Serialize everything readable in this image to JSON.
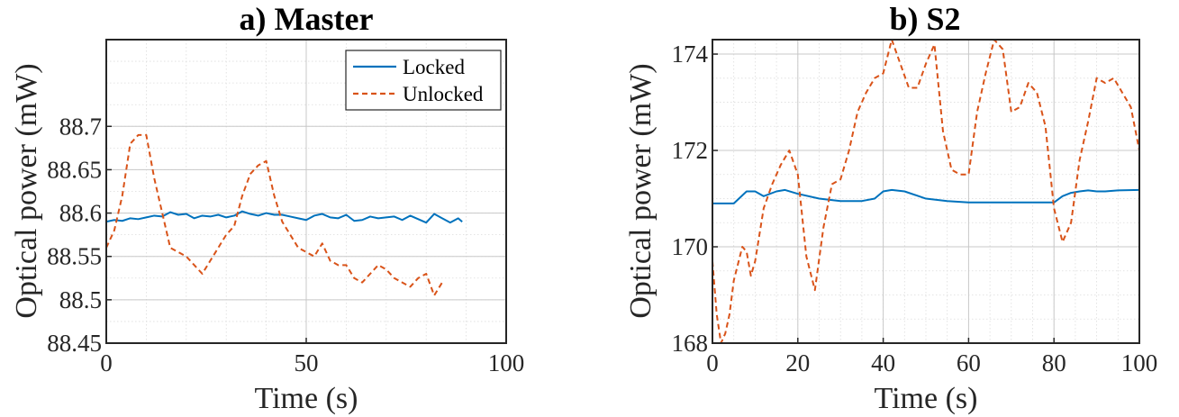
{
  "chart_data": [
    {
      "type": "line",
      "title": "a) Master",
      "xlabel": "Time (s)",
      "ylabel": "Optical power (mW)",
      "xlim": [
        0,
        100
      ],
      "ylim": [
        88.45,
        88.8
      ],
      "xticks": [
        "0",
        "50",
        "100"
      ],
      "yticks": [
        "88.45",
        "88.5",
        "88.55",
        "88.6",
        "88.65",
        "88.7"
      ],
      "grid": true,
      "minor_grid": true,
      "legend": "top-right",
      "series": [
        {
          "name": "Locked",
          "color": "#0072BD",
          "style": "solid",
          "x": [
            0,
            2,
            4,
            6,
            8,
            10,
            12,
            14,
            16,
            18,
            20,
            22,
            24,
            26,
            28,
            30,
            32,
            34,
            36,
            38,
            40,
            42,
            44,
            46,
            48,
            50,
            52,
            54,
            56,
            58,
            60,
            62,
            64,
            66,
            68,
            70,
            72,
            74,
            76,
            78,
            80,
            82,
            84,
            86,
            88,
            89
          ],
          "y": [
            88.59,
            88.592,
            88.591,
            88.594,
            88.593,
            88.595,
            88.597,
            88.596,
            88.601,
            88.598,
            88.599,
            88.594,
            88.597,
            88.596,
            88.598,
            88.595,
            88.597,
            88.602,
            88.599,
            88.597,
            88.6,
            88.598,
            88.598,
            88.596,
            88.594,
            88.592,
            88.597,
            88.599,
            88.595,
            88.594,
            88.598,
            88.591,
            88.592,
            88.596,
            88.594,
            88.595,
            88.596,
            88.592,
            88.597,
            88.593,
            88.589,
            88.599,
            88.594,
            88.589,
            88.594,
            88.59
          ]
        },
        {
          "name": "Unlocked",
          "color": "#D95319",
          "style": "dashed",
          "x": [
            0,
            2,
            4,
            6,
            8,
            10,
            12,
            14,
            16,
            18,
            20,
            22,
            24,
            26,
            28,
            30,
            32,
            34,
            36,
            38,
            40,
            42,
            44,
            46,
            48,
            50,
            52,
            54,
            56,
            58,
            60,
            62,
            64,
            66,
            68,
            70,
            72,
            74,
            76,
            78,
            80,
            82,
            84
          ],
          "y": [
            88.56,
            88.58,
            88.62,
            88.68,
            88.69,
            88.69,
            88.64,
            88.6,
            88.56,
            88.555,
            88.55,
            88.54,
            88.53,
            88.545,
            88.56,
            88.575,
            88.585,
            88.62,
            88.645,
            88.655,
            88.66,
            88.62,
            88.59,
            88.575,
            88.56,
            88.555,
            88.55,
            88.565,
            88.545,
            88.54,
            88.54,
            88.525,
            88.52,
            88.53,
            88.54,
            88.535,
            88.525,
            88.52,
            88.515,
            88.525,
            88.53,
            88.505,
            88.52
          ]
        }
      ]
    },
    {
      "type": "line",
      "title": "b) S2",
      "xlabel": "Time (s)",
      "ylabel": "Optical power (mW)",
      "xlim": [
        0,
        100
      ],
      "ylim": [
        168,
        174.3
      ],
      "xticks": [
        "0",
        "20",
        "40",
        "60",
        "80",
        "100"
      ],
      "yticks": [
        "168",
        "170",
        "172",
        "174"
      ],
      "grid": true,
      "minor_grid": true,
      "legend": "none",
      "series": [
        {
          "color": "#0072BD",
          "style": "solid",
          "x": [
            0,
            5,
            8,
            10,
            12,
            15,
            17,
            20,
            25,
            30,
            35,
            38,
            40,
            42,
            45,
            50,
            55,
            60,
            65,
            70,
            75,
            80,
            82,
            84,
            86,
            88,
            90,
            92,
            95,
            100
          ],
          "y": [
            170.9,
            170.9,
            171.15,
            171.15,
            171.05,
            171.15,
            171.18,
            171.1,
            171.0,
            170.95,
            170.95,
            171.0,
            171.15,
            171.18,
            171.15,
            171.0,
            170.95,
            170.92,
            170.92,
            170.92,
            170.92,
            170.92,
            171.05,
            171.12,
            171.15,
            171.17,
            171.15,
            171.15,
            171.17,
            171.18
          ]
        },
        {
          "color": "#D95319",
          "style": "dashed",
          "x": [
            0,
            1,
            2,
            3,
            4,
            5,
            7,
            8,
            9,
            10,
            12,
            14,
            16,
            18,
            20,
            22,
            24,
            26,
            28,
            30,
            32,
            34,
            36,
            38,
            40,
            42,
            44,
            46,
            48,
            50,
            52,
            54,
            56,
            58,
            60,
            62,
            64,
            66,
            68,
            70,
            72,
            74,
            76,
            78,
            80,
            82,
            84,
            86,
            88,
            90,
            92,
            94,
            96,
            98,
            100
          ],
          "y": [
            169.7,
            168.6,
            168.0,
            168.2,
            168.6,
            169.3,
            170.0,
            169.9,
            169.4,
            169.7,
            170.8,
            171.3,
            171.7,
            172.0,
            171.5,
            169.8,
            169.1,
            170.4,
            171.3,
            171.4,
            172.0,
            172.8,
            173.2,
            173.5,
            173.6,
            174.3,
            173.8,
            173.3,
            173.3,
            173.8,
            174.2,
            172.4,
            171.6,
            171.5,
            171.5,
            172.8,
            173.6,
            174.3,
            174.1,
            172.8,
            172.9,
            173.4,
            173.2,
            172.5,
            170.8,
            170.1,
            170.5,
            171.8,
            172.6,
            173.5,
            173.4,
            173.5,
            173.2,
            172.9,
            172.0
          ]
        }
      ]
    }
  ]
}
